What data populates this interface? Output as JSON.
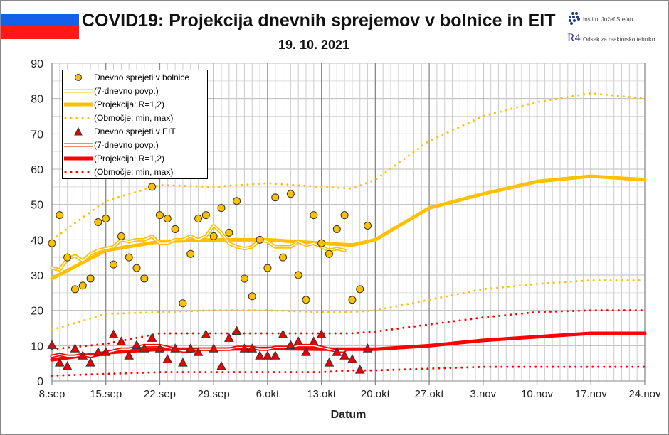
{
  "header": {
    "title": "COVID19: Projekcija dnevnih sprejemov v bolnice in EIT",
    "date": "19. 10. 2021",
    "logo_ijs": "Institut Jožef Stefan",
    "logo_r4": "Odsek za reaktorsko tehniko",
    "logo_r4_mark": "R4"
  },
  "colors": {
    "hospital": "#ffc000",
    "icu": "#ff0000"
  },
  "legend": [
    {
      "label": "Dnevno sprejeti v bolnice"
    },
    {
      "label": "(7-dnevno povp.)"
    },
    {
      "label": "(Projekcija: R=1,2)"
    },
    {
      "label": "(Območje: min, max)"
    },
    {
      "label": "Dnevno sprejeti v EIT"
    },
    {
      "label": "(7-dnevno povp.)"
    },
    {
      "label": "(Projekcija: R=1,2)"
    },
    {
      "label": "(Območje: min, max)"
    }
  ],
  "chart_data": {
    "type": "line",
    "title": "COVID19: Projekcija dnevnih sprejemov v bolnice in EIT",
    "subtitle": "19. 10. 2021",
    "xlabel": "Datum",
    "ylabel": "",
    "ylim": [
      0,
      90
    ],
    "yticks": [
      0,
      10,
      20,
      30,
      40,
      50,
      60,
      70,
      80,
      90
    ],
    "xlim_days": [
      0,
      77
    ],
    "xtick_labels": [
      "8.sep",
      "15.sep",
      "22.sep",
      "29.sep",
      "6.okt",
      "13.okt",
      "20.okt",
      "27.okt",
      "3.nov",
      "10.nov",
      "17.nov",
      "24.nov"
    ],
    "grid": true,
    "legend_position": "top-left",
    "hospital_daily": [
      39,
      47,
      35,
      26,
      27,
      29,
      45,
      46,
      33,
      41,
      35,
      32,
      29,
      55,
      47,
      46,
      43,
      22,
      36,
      46,
      47,
      41,
      49,
      42,
      51,
      29,
      24,
      40,
      32,
      52,
      35,
      53,
      30,
      23,
      47,
      39,
      36,
      43,
      47,
      23,
      26,
      44
    ],
    "icu_daily": [
      10,
      5,
      4,
      9,
      7,
      5,
      8,
      8,
      13,
      11,
      7,
      10,
      9,
      12,
      9,
      6,
      9,
      5,
      9,
      8,
      13,
      9,
      4,
      12,
      14,
      9,
      9,
      7,
      7,
      7,
      13,
      10,
      11,
      8,
      11,
      13,
      5,
      8,
      7,
      6,
      3,
      9
    ],
    "hospital_7day": [
      32,
      31.5,
      34.5,
      35.5,
      34,
      36,
      37,
      37.5,
      38,
      40,
      39.5,
      40,
      40,
      41,
      39,
      39,
      40,
      40,
      41,
      40,
      41,
      44,
      42,
      39,
      38,
      37.5,
      38,
      40,
      39.5,
      38,
      38,
      38,
      39.5,
      38.5,
      39,
      38,
      37,
      37.5,
      37
    ],
    "icu_7day": [
      7,
      7.5,
      7,
      7,
      7.5,
      7,
      7.5,
      8,
      8.5,
      9,
      9,
      9.5,
      10,
      10,
      10,
      9.5,
      9,
      8.5,
      8.5,
      9,
      9,
      9,
      9,
      9,
      9.5,
      9.5,
      9.5,
      9,
      9,
      9.5,
      9.5,
      9.5,
      10,
      10,
      10,
      9.5,
      9,
      8.5,
      8.5
    ],
    "projection_days": [
      0,
      7,
      14,
      21,
      28,
      35,
      39,
      42,
      49,
      56,
      63,
      70,
      77
    ],
    "hospital_projection": [
      29,
      37,
      39.5,
      40,
      40,
      39,
      38.5,
      40,
      49,
      53,
      56.5,
      58,
      57
    ],
    "hospital_min": [
      14.5,
      19,
      19.5,
      20,
      20,
      19.5,
      19.5,
      20,
      23,
      26,
      27.5,
      28.5,
      28.5
    ],
    "hospital_max": [
      40,
      51,
      55.5,
      55,
      56,
      55,
      54.5,
      57,
      68,
      75,
      79,
      81.5,
      80
    ],
    "icu_projection": [
      6,
      8,
      9,
      9,
      9.2,
      9,
      9,
      9,
      10,
      11.5,
      12.5,
      13.5,
      13.5
    ],
    "icu_min": [
      1.5,
      2,
      2.5,
      2.5,
      2.5,
      2.5,
      3,
      3,
      3.5,
      4,
      4,
      4,
      4
    ],
    "icu_max": [
      9,
      10.5,
      13.5,
      13.5,
      13.5,
      13.5,
      13.5,
      14,
      16,
      18,
      19.5,
      20,
      20
    ]
  }
}
